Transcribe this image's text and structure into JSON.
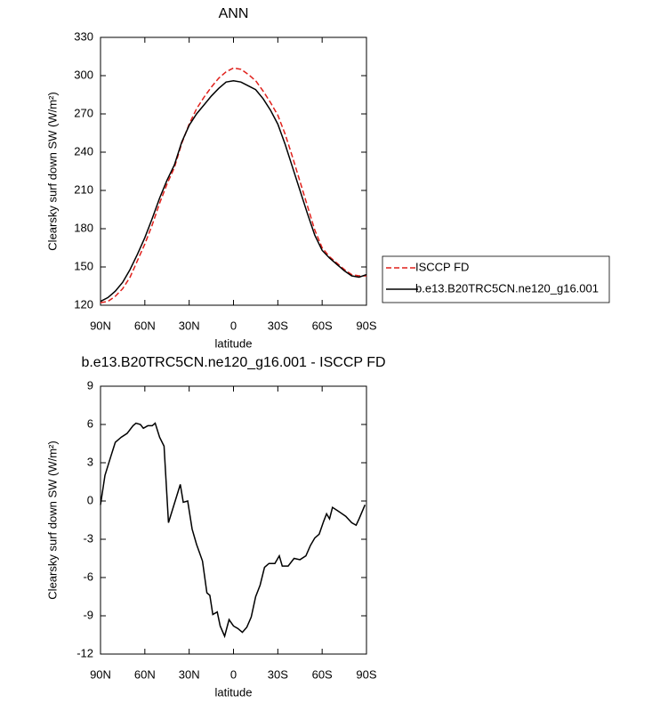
{
  "chart_data": [
    {
      "type": "line",
      "title": "ANN",
      "xlabel": "latitude",
      "ylabel": "Clearsky surf down SW (W/m²)",
      "x": [
        90,
        85,
        80,
        75,
        70,
        65,
        60,
        55,
        50,
        45,
        40,
        35,
        30,
        25,
        20,
        15,
        10,
        5,
        0,
        -5,
        -10,
        -15,
        -20,
        -25,
        -30,
        -35,
        -40,
        -45,
        -50,
        -55,
        -60,
        -65,
        -70,
        -75,
        -80,
        -85,
        -90
      ],
      "series": [
        {
          "name": "ISCCP FD",
          "color": "#e0201b",
          "style": "dashed",
          "values": [
            122,
            123,
            127,
            133,
            142,
            155,
            168,
            183,
            200,
            215,
            228,
            247,
            262,
            274,
            283,
            291,
            298,
            303,
            306,
            305,
            301,
            296,
            288,
            279,
            269,
            254,
            236,
            217,
            198,
            179,
            165,
            158,
            153,
            148,
            144,
            143,
            143
          ]
        },
        {
          "name": "b.e13.B20TRC5CN.ne120_g16.001",
          "color": "#000000",
          "style": "solid",
          "values": [
            123,
            126,
            131,
            138,
            148,
            160,
            173,
            188,
            204,
            218,
            230,
            248,
            261,
            270,
            277,
            284,
            290,
            295,
            296,
            295,
            292,
            289,
            282,
            273,
            262,
            246,
            228,
            210,
            192,
            175,
            163,
            157,
            152,
            147,
            143,
            142,
            144
          ]
        }
      ],
      "xlim": [
        90,
        -90
      ],
      "xticks": [
        {
          "value": 90,
          "label": "90N"
        },
        {
          "value": 60,
          "label": "60N"
        },
        {
          "value": 30,
          "label": "30N"
        },
        0,
        {
          "value": -30,
          "label": "30S"
        },
        {
          "value": -60,
          "label": "60S"
        },
        {
          "value": -90,
          "label": "90S"
        }
      ],
      "ylim": [
        120,
        330
      ],
      "yticks": [
        120,
        150,
        180,
        210,
        240,
        270,
        300,
        330
      ],
      "legend": "right"
    },
    {
      "type": "line",
      "title": "b.e13.B20TRC5CN.ne120_g16.001 - ISCCP FD",
      "xlabel": "latitude",
      "ylabel": "Clearsky surf down SW (W/m²)",
      "x": [
        90,
        87,
        83,
        80,
        76,
        72,
        68,
        66,
        63,
        61,
        58,
        55,
        53,
        50,
        47,
        44,
        36,
        34,
        31,
        28,
        25,
        21,
        18,
        16,
        14,
        11,
        9,
        6,
        3,
        0,
        -3,
        -6,
        -9,
        -12,
        -15,
        -18,
        -21,
        -24,
        -28,
        -31,
        -33,
        -37,
        -41,
        -45,
        -49,
        -52,
        -55,
        -58,
        -61,
        -63,
        -65,
        -67,
        -71,
        -76,
        -80,
        -83,
        -85,
        -89
      ],
      "series": [
        {
          "color": "#000000",
          "style": "solid",
          "values": [
            -0.3,
            2,
            3.5,
            4.6,
            5.0,
            5.3,
            5.9,
            6.1,
            6.0,
            5.7,
            5.9,
            5.9,
            6.1,
            5.0,
            4.3,
            -1.7,
            1.3,
            -0.1,
            0.0,
            -2.2,
            -3.4,
            -4.7,
            -7.2,
            -7.4,
            -8.9,
            -8.7,
            -9.8,
            -10.6,
            -9.3,
            -9.8,
            -10.0,
            -10.3,
            -9.9,
            -9.1,
            -7.5,
            -6.6,
            -5.2,
            -4.9,
            -4.9,
            -4.3,
            -5.1,
            -5.1,
            -4.5,
            -4.6,
            -4.3,
            -3.5,
            -2.9,
            -2.6,
            -1.6,
            -1.0,
            -1.4,
            -0.5,
            -0.8,
            -1.2,
            -1.7,
            -1.9,
            -1.4,
            -0.3
          ]
        }
      ],
      "xlim": [
        90,
        -90
      ],
      "xticks": [
        {
          "value": 90,
          "label": "90N"
        },
        {
          "value": 60,
          "label": "60N"
        },
        {
          "value": 30,
          "label": "30N"
        },
        0,
        {
          "value": -30,
          "label": "30S"
        },
        {
          "value": -60,
          "label": "60S"
        },
        {
          "value": -90,
          "label": "90S"
        }
      ],
      "ylim": [
        -12,
        9
      ],
      "yticks": [
        -12,
        -9,
        -6,
        -3,
        0,
        3,
        6,
        9
      ]
    }
  ]
}
